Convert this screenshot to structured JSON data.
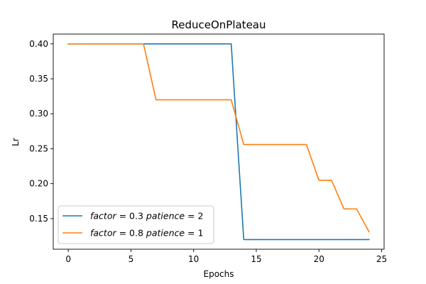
{
  "chart_data": {
    "type": "line",
    "title": "ReduceOnPlateau",
    "xlabel": "Epochs",
    "ylabel": "Lr",
    "xlim": [
      -1.2,
      25.2
    ],
    "ylim": [
      0.1062,
      0.414
    ],
    "x_ticks": [
      0,
      5,
      10,
      15,
      20,
      25
    ],
    "x_tick_labels": [
      "0",
      "5",
      "10",
      "15",
      "20",
      "25"
    ],
    "y_ticks": [
      0.15,
      0.2,
      0.25,
      0.3,
      0.35,
      0.4
    ],
    "y_tick_labels": [
      "0.15",
      "0.20",
      "0.25",
      "0.30",
      "0.35",
      "0.40"
    ],
    "grid": false,
    "legend_position": "lower-left",
    "x": [
      0,
      1,
      2,
      3,
      4,
      5,
      6,
      7,
      8,
      9,
      10,
      11,
      12,
      13,
      14,
      15,
      16,
      17,
      18,
      19,
      20,
      21,
      22,
      23,
      24
    ],
    "series": [
      {
        "name": "factor = 0.3 patience = 2",
        "legend_parts": [
          {
            "t": "factor",
            "it": true
          },
          {
            "t": " = 0.3 ",
            "it": false
          },
          {
            "t": "patience",
            "it": true
          },
          {
            "t": " = 2",
            "it": false
          }
        ],
        "color": "#1f77b4",
        "values": [
          0.4,
          0.4,
          0.4,
          0.4,
          0.4,
          0.4,
          0.4,
          0.4,
          0.4,
          0.4,
          0.4,
          0.4,
          0.4,
          0.4,
          0.12,
          0.12,
          0.12,
          0.12,
          0.12,
          0.12,
          0.12,
          0.12,
          0.12,
          0.12,
          0.12
        ]
      },
      {
        "name": "factor = 0.8 patience = 1",
        "legend_parts": [
          {
            "t": "factor",
            "it": true
          },
          {
            "t": " = 0.8 ",
            "it": false
          },
          {
            "t": "patience",
            "it": true
          },
          {
            "t": " = 1",
            "it": false
          }
        ],
        "color": "#ff7f0e",
        "values": [
          0.4,
          0.4,
          0.4,
          0.4,
          0.4,
          0.4,
          0.4,
          0.32,
          0.32,
          0.32,
          0.32,
          0.32,
          0.32,
          0.32,
          0.256,
          0.256,
          0.256,
          0.256,
          0.256,
          0.256,
          0.2048,
          0.2048,
          0.16384,
          0.16384,
          0.131072
        ]
      }
    ]
  }
}
